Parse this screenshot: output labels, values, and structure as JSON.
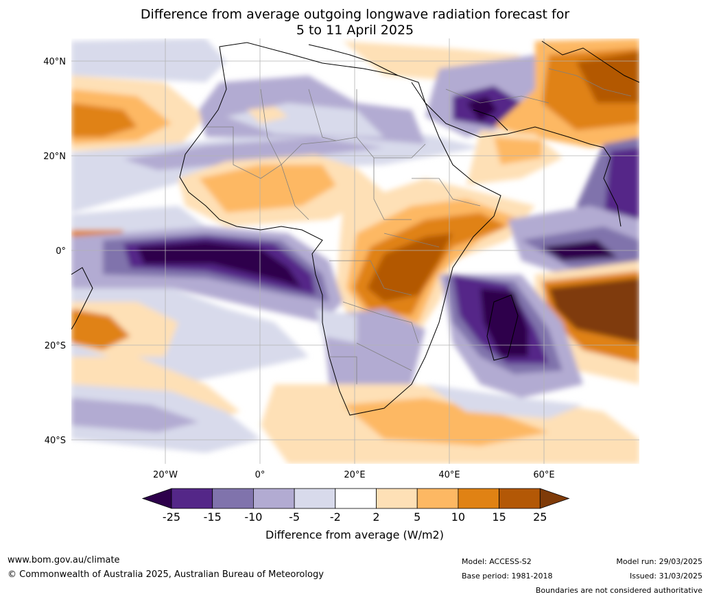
{
  "title": {
    "line1": "Difference from average outgoing longwave radiation forecast for",
    "line2": "5 to 11 April 2025"
  },
  "map": {
    "lat_labels": [
      "40°N",
      "20°N",
      "0°",
      "20°S",
      "40°S"
    ],
    "lon_labels": [
      "20°W",
      "0°",
      "20°E",
      "40°E",
      "60°E"
    ]
  },
  "colorbar": {
    "ticks": [
      "-25",
      "-15",
      "-10",
      "-5",
      "-2",
      "2",
      "5",
      "10",
      "15",
      "25"
    ],
    "colors": [
      "#2d004b",
      "#542788",
      "#8073ac",
      "#b2abd2",
      "#d8daeb",
      "#ffffff",
      "#fee0b6",
      "#fdb863",
      "#e08214",
      "#b35806",
      "#7f3b08"
    ],
    "label": "Difference from average (W/m2)"
  },
  "footer": {
    "website": "www.bom.gov.au/climate",
    "copyright": "© Commonwealth of Australia 2025, Australian Bureau of Meteorology",
    "model": "Model: ACCESS-S2",
    "base_period": "Base period: 1981-2018",
    "model_run": "Model run: 29/03/2025",
    "issued": "Issued: 31/03/2025",
    "disclaimer": "Boundaries are not considered authoritative"
  }
}
